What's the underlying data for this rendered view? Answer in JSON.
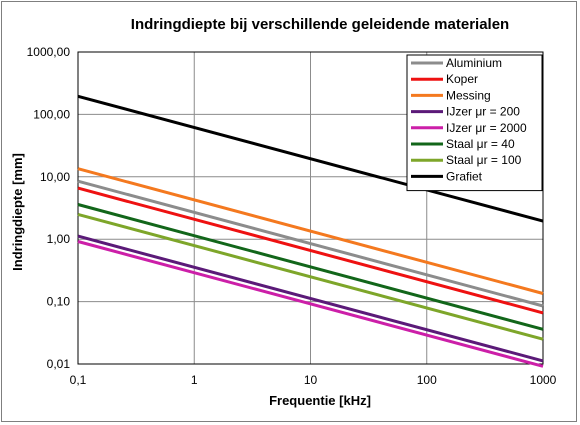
{
  "chart_data": {
    "type": "line",
    "title": "Indringdiepte bij verschillende geleidende materialen",
    "xlabel": "Frequentie [kHz]",
    "ylabel": "Indringdiepte [mm]",
    "x_scale": "log",
    "y_scale": "log",
    "xlim": [
      0.1,
      1000
    ],
    "ylim": [
      0.01,
      1000
    ],
    "x_ticks": [
      {
        "value": 0.1,
        "label": "0,1"
      },
      {
        "value": 1,
        "label": "1"
      },
      {
        "value": 10,
        "label": "10"
      },
      {
        "value": 100,
        "label": "100"
      },
      {
        "value": 1000,
        "label": "1000"
      }
    ],
    "y_ticks": [
      {
        "value": 0.01,
        "label": "0,01"
      },
      {
        "value": 0.1,
        "label": "0,10"
      },
      {
        "value": 1,
        "label": "1,00"
      },
      {
        "value": 10,
        "label": "10,00"
      },
      {
        "value": 100,
        "label": "100,00"
      },
      {
        "value": 1000,
        "label": "1000,00"
      }
    ],
    "grid": true,
    "legend_position": "top-right",
    "series": [
      {
        "name": "Aluminium",
        "color": "#8c8c8c",
        "x": [
          0.1,
          1000
        ],
        "y": [
          8.5,
          0.085
        ]
      },
      {
        "name": "Koper",
        "color": "#ee1111",
        "x": [
          0.1,
          1000
        ],
        "y": [
          6.6,
          0.066
        ]
      },
      {
        "name": "Messing",
        "color": "#f4791f",
        "x": [
          0.1,
          1000
        ],
        "y": [
          13.5,
          0.135
        ]
      },
      {
        "name": "IJzer μr = 200",
        "color": "#5b1a78",
        "x": [
          0.1,
          1000
        ],
        "y": [
          1.12,
          0.0112
        ]
      },
      {
        "name": "IJzer μr = 2000",
        "color": "#cc1fa8",
        "x": [
          0.1,
          1000
        ],
        "y": [
          0.92,
          0.0092
        ]
      },
      {
        "name": "Staal μr = 40",
        "color": "#12661a",
        "x": [
          0.1,
          1000
        ],
        "y": [
          3.6,
          0.036
        ]
      },
      {
        "name": "Staal μr = 100",
        "color": "#7ea62a",
        "x": [
          0.1,
          1000
        ],
        "y": [
          2.5,
          0.025
        ]
      },
      {
        "name": "Grafiet",
        "color": "#000000",
        "x": [
          0.1,
          1000
        ],
        "y": [
          195,
          1.95
        ]
      }
    ]
  }
}
